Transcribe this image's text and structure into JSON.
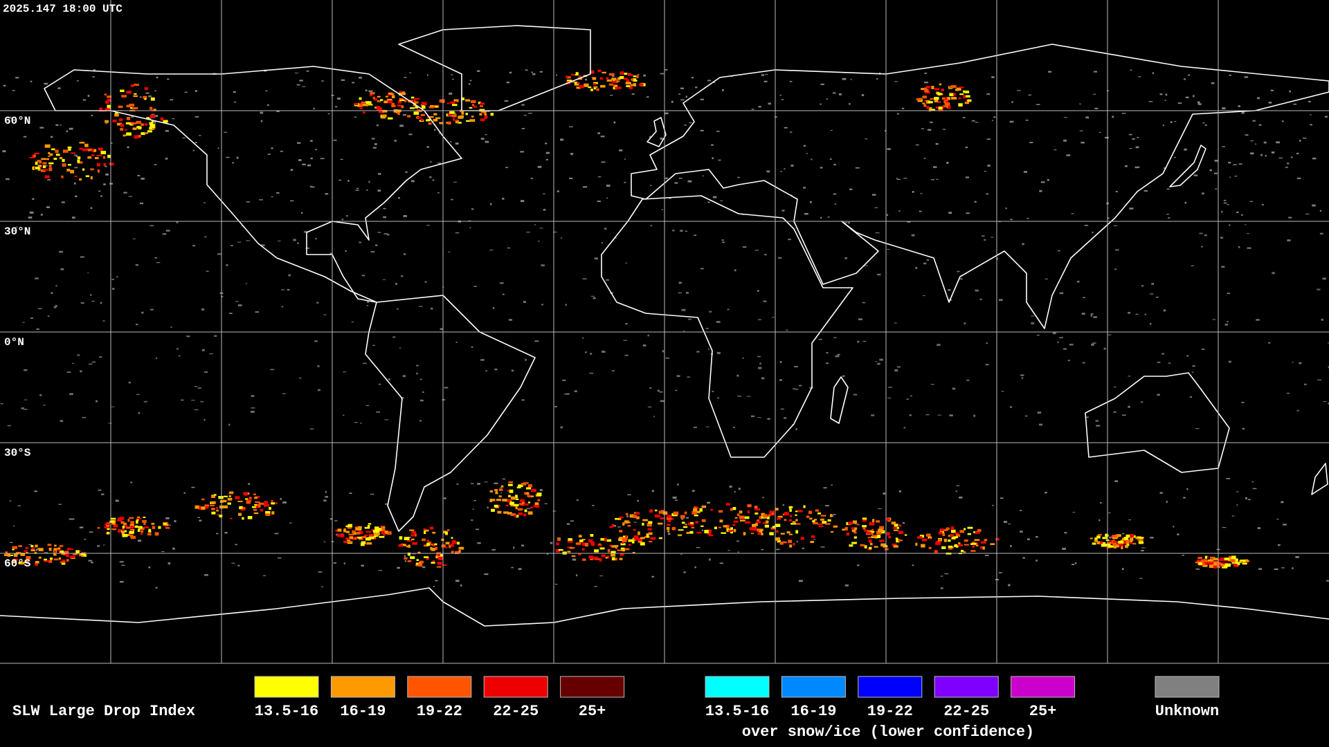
{
  "header": {
    "timestamp": "2025.147 18:00 UTC"
  },
  "map": {
    "lat_labels": [
      "60°N",
      "30°N",
      "0°N",
      "30°S",
      "60°S"
    ]
  },
  "legend": {
    "title": "SLW Large Drop Index",
    "subtitle": "over snow/ice (lower confidence)",
    "items": [
      {
        "label": "13.5-16",
        "color": "#ffff00"
      },
      {
        "label": "16-19",
        "color": "#ff9900"
      },
      {
        "label": "19-22",
        "color": "#ff5500"
      },
      {
        "label": "22-25",
        "color": "#ee0000"
      },
      {
        "label": "25+",
        "color": "#660000"
      }
    ],
    "snow_items": [
      {
        "label": "13.5-16",
        "color": "#00ffff"
      },
      {
        "label": "16-19",
        "color": "#0088ff"
      },
      {
        "label": "19-22",
        "color": "#0000ff"
      },
      {
        "label": "22-25",
        "color": "#7f00ff"
      },
      {
        "label": "25+",
        "color": "#cc00cc"
      }
    ],
    "unknown": {
      "label": "Unknown",
      "color": "#808080"
    }
  }
}
